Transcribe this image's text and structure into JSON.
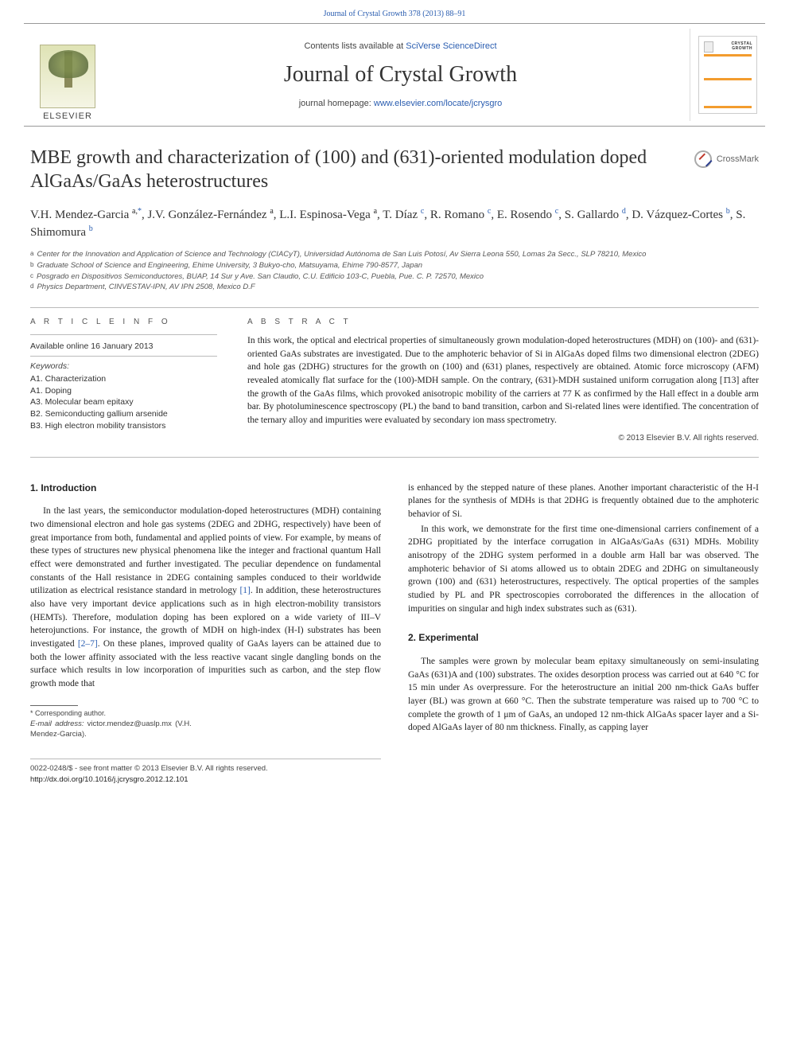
{
  "header": {
    "citation": "Journal of Crystal Growth 378 (2013) 88–91",
    "contents_prefix": "Contents lists available at ",
    "contents_link": "SciVerse ScienceDirect",
    "journal_name": "Journal of Crystal Growth",
    "homepage_prefix": "journal homepage: ",
    "homepage_url": "www.elsevier.com/locate/jcrysgro",
    "publisher": "ELSEVIER",
    "cover_label_top": "CRYSTAL",
    "cover_label_bot": "GROWTH",
    "crossmark_label": "CrossMark"
  },
  "article": {
    "title": "MBE growth and characterization of (100) and (631)-oriented modulation doped AlGaAs/GaAs heterostructures",
    "authors_html": "V.H. Mendez-Garcia <sup class='black'>a,</sup><sup>*</sup>, J.V. González-Fernández <sup class='black'>a</sup>, L.I. Espinosa-Vega <sup class='black'>a</sup>, T. Díaz <sup>c</sup>, R. Romano <sup>c</sup>, E. Rosendo <sup>c</sup>, S. Gallardo <sup>d</sup>, D. Vázquez-Cortes <sup>b</sup>, S. Shimomura <sup>b</sup>",
    "affiliations": [
      {
        "sup": "a",
        "text": "Center for the Innovation and Application of Science and Technology (CIACyT), Universidad Autónoma de San Luis Potosí, Av Sierra Leona 550, Lomas 2a Secc., SLP 78210, Mexico"
      },
      {
        "sup": "b",
        "text": "Graduate School of Science and Engineering, Ehime University, 3 Bukyo-cho, Matsuyama, Ehime 790-8577, Japan"
      },
      {
        "sup": "c",
        "text": "Posgrado en Dispositivos Semiconductores, BUAP, 14 Sur y Ave. San Claudio, C.U. Edificio 103-C, Puebla, Pue. C. P. 72570, Mexico"
      },
      {
        "sup": "d",
        "text": "Physics Department, CINVESTAV-IPN, AV IPN 2508, Mexico D.F"
      }
    ]
  },
  "info": {
    "heading": "A R T I C L E   I N F O",
    "available": "Available online 16 January 2013",
    "keywords_label": "Keywords:",
    "keywords": [
      "A1. Characterization",
      "A1. Doping",
      "A3. Molecular beam epitaxy",
      "B2. Semiconducting gallium arsenide",
      "B3. High electron mobility transistors"
    ]
  },
  "abstract": {
    "heading": "A B S T R A C T",
    "text": "In this work, the optical and electrical properties of simultaneously grown modulation-doped heterostructures (MDH) on (100)- and (631)-oriented GaAs substrates are investigated. Due to the amphoteric behavior of Si in AlGaAs doped films two dimensional electron (2DEG) and hole gas (2DHG) structures for the growth on (100) and (631) planes, respectively are obtained. Atomic force microscopy (AFM) revealed atomically flat surface for the (100)-MDH sample. On the contrary, (631)-MDH sustained uniform corrugation along [1̄13] after the growth of the GaAs films, which provoked anisotropic mobility of the carriers at 77 K as confirmed by the Hall effect in a double arm bar. By photoluminescence spectroscopy (PL) the band to band transition, carbon and Si-related lines were identified. The concentration of the ternary alloy and impurities were evaluated by secondary ion mass spectrometry.",
    "copyright": "© 2013 Elsevier B.V. All rights reserved."
  },
  "body": {
    "section1_title": "1.  Introduction",
    "section1_p1": "In the last years, the semiconductor modulation-doped heterostructures (MDH) containing two dimensional electron and hole gas systems (2DEG and 2DHG, respectively) have been of great importance from both, fundamental and applied points of view. For example, by means of these types of structures new physical phenomena like the integer and fractional quantum Hall effect were demonstrated and further investigated. The peculiar dependence on fundamental constants of the Hall resistance in 2DEG containing samples conduced to their worldwide utilization as electrical resistance standard in metrology ",
    "ref1": "[1]",
    "section1_p1b": ". In addition, these heterostructures also have very important device applications such as in high electron-mobility transistors (HEMTs). Therefore, modulation doping has been explored on a wide variety of III–V heterojunctions. For instance, the growth of MDH on high-index (H-I) substrates has been investigated ",
    "ref2": "[2–7]",
    "section1_p1c": ". On these planes, improved quality of GaAs layers can be attained due to both the lower affinity associated with the less reactive vacant single dangling bonds on the surface which results in low incorporation of impurities such as carbon, and the step flow growth mode that",
    "section1_p2": "is enhanced by the stepped nature of these planes. Another important characteristic of the H-I planes for the synthesis of MDHs is that 2DHG is frequently obtained due to the amphoteric behavior of Si.",
    "section1_p3": "In this work, we demonstrate for the first time one-dimensional carriers confinement of a 2DHG propitiated by the interface corrugation in AlGaAs/GaAs (631) MDHs. Mobility anisotropy of the 2DHG system performed in a double arm Hall bar was observed. The amphoteric behavior of Si atoms allowed us to obtain 2DEG and 2DHG on simultaneously grown (100) and (631) heterostructures, respectively. The optical properties of the samples studied by PL and PR spectroscopies corroborated the differences in the allocation of impurities on singular and high index substrates such as (631).",
    "section2_title": "2.  Experimental",
    "section2_p1": "The samples were grown by molecular beam epitaxy simultaneously on semi-insulating GaAs (631)A and (100) substrates. The oxides desorption process was carried out at 640 °C for 15 min under As overpressure. For the heterostructure an initial 200 nm-thick GaAs buffer layer (BL) was grown at 660 °C. Then the substrate temperature was raised up to 700 °C to complete the growth of 1 μm of GaAs, an undoped 12 nm-thick AlGaAs spacer layer and a Si-doped AlGaAs layer of 80 nm thickness. Finally, as capping layer"
  },
  "footer": {
    "corr_marker": "* Corresponding author.",
    "email_label": "E-mail address:",
    "email": "victor.mendez@uaslp.mx",
    "email_who": "(V.H. Mendez-Garcia).",
    "issn_line": "0022-0248/$ - see front matter © 2013 Elsevier B.V. All rights reserved.",
    "doi_line": "http://dx.doi.org/10.1016/j.jcrysgro.2012.12.101"
  },
  "colors": {
    "link": "#2a5db0",
    "rule": "#bbbbbb",
    "text": "#222222"
  }
}
